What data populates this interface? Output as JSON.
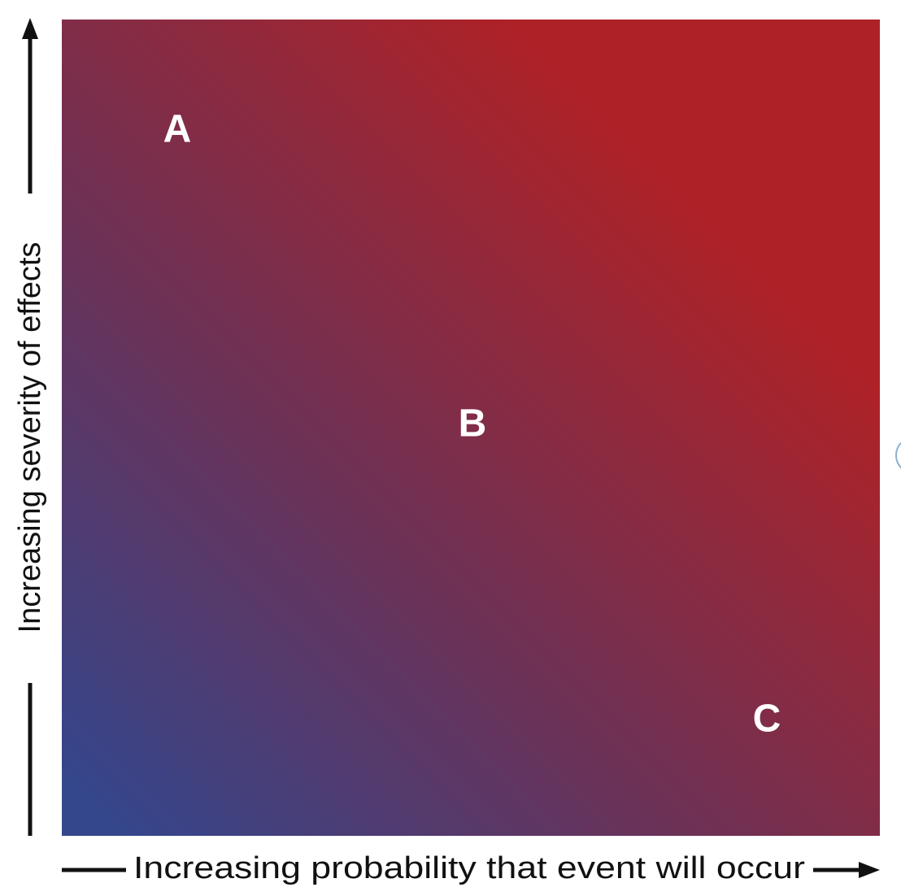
{
  "axes": {
    "x_label": "Increasing probability that event will occur",
    "y_label": "Increasing severity of effects"
  },
  "points": [
    {
      "label": "A"
    },
    {
      "label": "B"
    },
    {
      "label": "C"
    }
  ]
}
